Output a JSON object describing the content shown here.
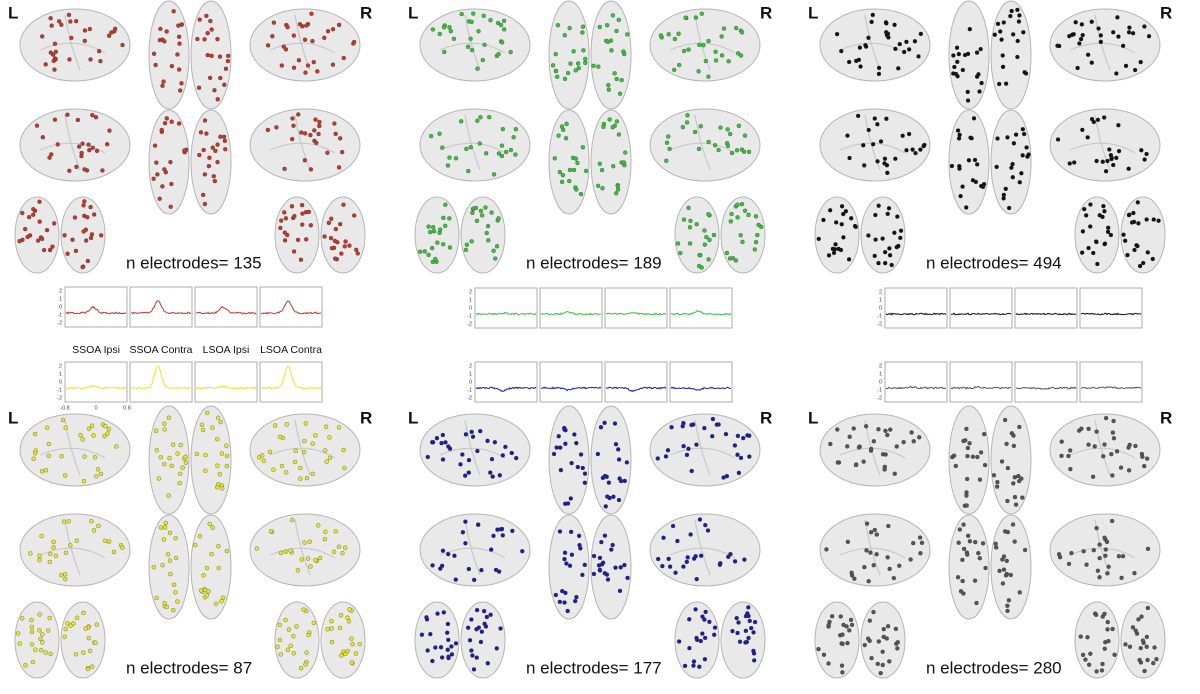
{
  "panels": [
    {
      "left_label": "L",
      "right_label": "R",
      "electrodes_label": "n electrodes= 135",
      "color": "#c0392b"
    },
    {
      "left_label": "L",
      "right_label": "R",
      "electrodes_label": "n electrodes= 189",
      "color": "#3dbf3d"
    },
    {
      "left_label": "L",
      "right_label": "R",
      "electrodes_label": "n electrodes= 494",
      "color": "#111111"
    },
    {
      "left_label": "L",
      "right_label": "R",
      "electrodes_label": "n electrodes= 87",
      "color": "#e6e62a"
    },
    {
      "left_label": "L",
      "right_label": "R",
      "electrodes_label": "n electrodes= 177",
      "color": "#1a1f9e"
    },
    {
      "left_label": "L",
      "right_label": "R",
      "electrodes_label": "n electrodes= 280",
      "color": "#555555"
    }
  ],
  "traces": {
    "y_ticks": [
      "2",
      "1",
      "0",
      "-1",
      "-2"
    ],
    "x_ticks": [
      "-0.8",
      "0",
      "0.8"
    ],
    "conditions": [
      "SSOA Ipsi",
      "SSOA Contra",
      "LSOA Ipsi",
      "LSOA Contra"
    ]
  }
}
